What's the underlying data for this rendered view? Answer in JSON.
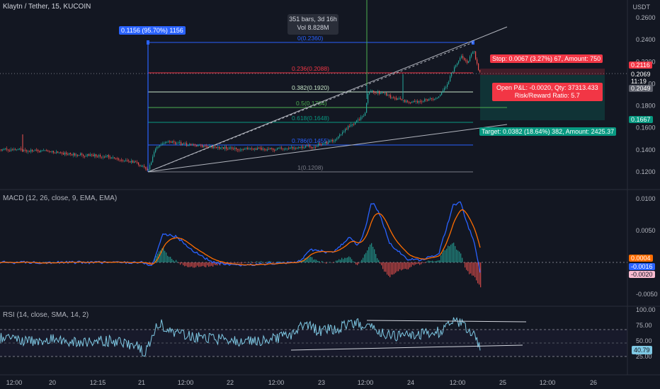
{
  "header": {
    "symbol_title": "Klaytn / Tether, 15, KUCOIN",
    "currency": "USDT",
    "tooltip_bars": "351 bars, 3d 16h",
    "tooltip_vol": "Vol 8.828M",
    "range_label": "0.1156 (95.70%) 1156"
  },
  "price_axis": {
    "ticks": [
      "0.2600",
      "0.2400",
      "0.2200",
      "0.2000",
      "0.1800",
      "0.1600",
      "0.1400",
      "0.1200"
    ],
    "tags": [
      {
        "label": "0.2116",
        "bg": "#f23645"
      },
      {
        "label": "0.2069",
        "bg": "#131722"
      },
      {
        "label": "11:19",
        "bg": "#131722"
      },
      {
        "label": "0.2049",
        "bg": "#5d606b"
      },
      {
        "label": "0.1667",
        "bg": "#089981"
      }
    ]
  },
  "fib_levels": [
    {
      "label": "0(0.2360)",
      "color": "#2962ff"
    },
    {
      "label": "0.236(0.2088)",
      "color": "#f23645"
    },
    {
      "label": "0.382(0.1920)",
      "color": "#c8e6c9"
    },
    {
      "label": "0.5(0.1784)",
      "color": "#4caf50"
    },
    {
      "label": "0.618(0.1648)",
      "color": "#089981"
    },
    {
      "label": "0.786(0.1455)",
      "color": "#2962ff"
    },
    {
      "label": "1(0.1208)",
      "color": "#787b86"
    }
  ],
  "position": {
    "stop": "Stop: 0.0067 (3.27%) 67, Amount: 750",
    "open_pl": "Open P&L: -0.0020, Qty: 37313.433",
    "risk_reward": "Risk/Reward Ratio: 5.7",
    "target": "Target: 0.0382 (18.64%) 382, Amount: 2425.37"
  },
  "macd": {
    "title": "MACD (12, 26, close, 9, EMA, EMA)",
    "ticks": [
      "0.0100",
      "0.0050",
      "-0.0050"
    ],
    "tags": [
      {
        "label": "0.0004",
        "bg": "#ff6d00"
      },
      {
        "label": "-0.0016",
        "bg": "#2962ff"
      },
      {
        "label": "-0.0020",
        "bg": "#f8bbd0"
      }
    ]
  },
  "rsi": {
    "title": "RSI (14, close, SMA, 14, 2)",
    "ticks": [
      "100.00",
      "75.00",
      "50.00",
      "25.00"
    ],
    "value_tag": "40.79"
  },
  "time_axis": {
    "labels": [
      "12:00",
      "20",
      "12:15",
      "21",
      "12:00",
      "22",
      "12:00",
      "23",
      "12:00",
      "24",
      "12:00",
      "25",
      "12:00",
      "26"
    ]
  },
  "colors": {
    "up": "#26a69a",
    "down": "#ef5350",
    "background": "#131722",
    "macd_line": "#2962ff",
    "signal_line": "#ff6d00",
    "rsi_line": "#7ec8e3"
  }
}
